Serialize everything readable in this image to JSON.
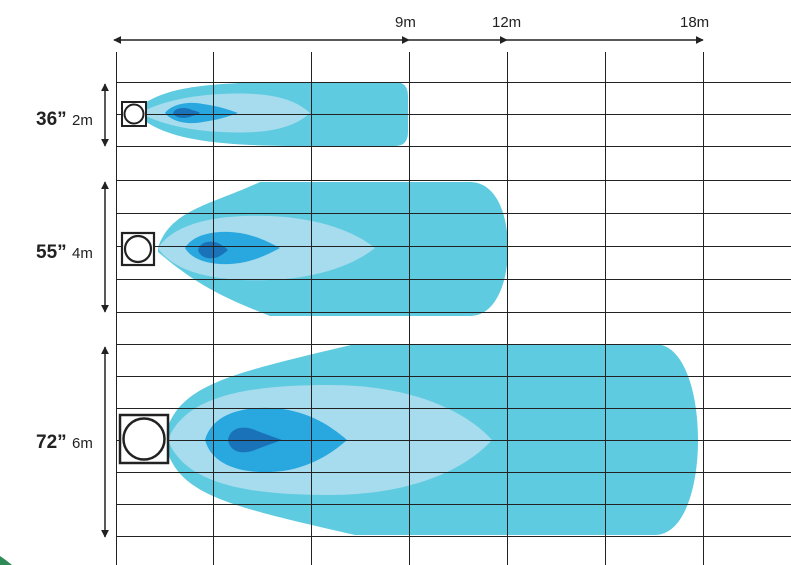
{
  "colors": {
    "outer": "#5ecbe0",
    "middle": "#a6dced",
    "inner": "#29a8e0",
    "core": "#1a73b8",
    "grid": "#222222",
    "text": "#222222"
  },
  "distance_labels": [
    "9m",
    "12m",
    "18m"
  ],
  "rows": [
    {
      "size_label": "36”",
      "dim_label": "2m"
    },
    {
      "size_label": "55”",
      "dim_label": "4m"
    },
    {
      "size_label": "72”",
      "dim_label": "6m"
    }
  ]
}
